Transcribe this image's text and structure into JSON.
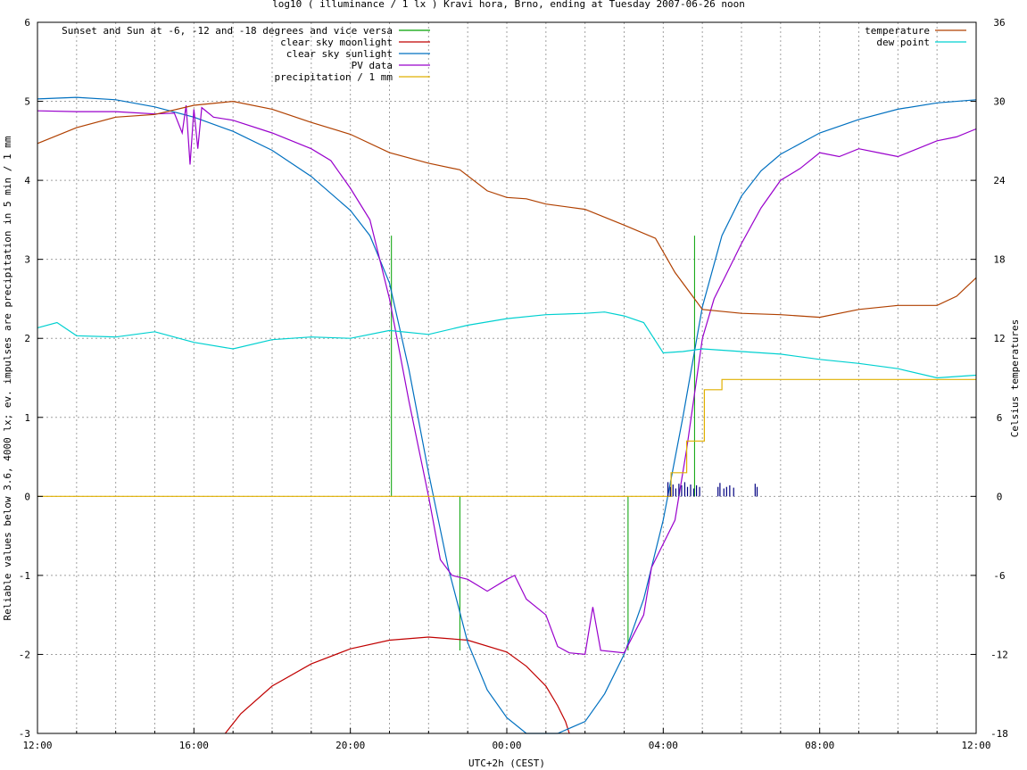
{
  "chart_data": {
    "type": "line",
    "title": "log10 ( illuminance / 1 lx ) Kravi hora, Brno, ending at Tuesday 2007-06-26 noon",
    "xlabel": "UTC+2h (CEST)",
    "ylabel": "Reliable values below 3.6, 4000 lx; ev. impulses are precipitation in 5 min / 1 mm",
    "y2label": "Celsius temperatures",
    "x_unit": "hours since 12:00 (start of window)",
    "xlim": [
      0,
      24
    ],
    "ylim": [
      -3,
      6
    ],
    "y2lim": [
      -18,
      36
    ],
    "xticks": [
      {
        "at": 0,
        "label": "12:00"
      },
      {
        "at": 4,
        "label": "16:00"
      },
      {
        "at": 8,
        "label": "20:00"
      },
      {
        "at": 12,
        "label": "00:00"
      },
      {
        "at": 16,
        "label": "04:00"
      },
      {
        "at": 20,
        "label": "08:00"
      },
      {
        "at": 24,
        "label": "12:00"
      }
    ],
    "yticks": [
      "-3",
      "-2",
      "-1",
      "0",
      "1",
      "2",
      "3",
      "4",
      "5",
      "6"
    ],
    "y2ticks": [
      "-18",
      "-12",
      "-6",
      "0",
      "6",
      "12",
      "18",
      "24",
      "30",
      "36"
    ],
    "grid": true,
    "legend_left": "top-left",
    "legend_right": "top-right",
    "series": [
      {
        "name": "Sunset and Sun at -6, -12 and -18 degrees and vice versa",
        "color": "#00a000",
        "axis": "y1",
        "kind": "impulses",
        "points": [
          [
            9.05,
            3.3
          ],
          [
            10.8,
            0
          ],
          [
            15.1,
            0
          ],
          [
            16.8,
            3.3
          ]
        ]
      },
      {
        "name": "clear sky moonlight",
        "color": "#c00000",
        "axis": "y1",
        "kind": "line",
        "points": [
          [
            4.8,
            -3.0
          ],
          [
            5.2,
            -2.75
          ],
          [
            6,
            -2.4
          ],
          [
            7,
            -2.12
          ],
          [
            8,
            -1.93
          ],
          [
            9,
            -1.82
          ],
          [
            10,
            -1.78
          ],
          [
            11,
            -1.82
          ],
          [
            12,
            -1.97
          ],
          [
            12.5,
            -2.15
          ],
          [
            13,
            -2.4
          ],
          [
            13.3,
            -2.65
          ],
          [
            13.5,
            -2.85
          ],
          [
            13.6,
            -3.0
          ]
        ]
      },
      {
        "name": "clear sky sunlight",
        "color": "#0070c0",
        "axis": "y1",
        "kind": "line",
        "points": [
          [
            0,
            5.03
          ],
          [
            1,
            5.05
          ],
          [
            2,
            5.02
          ],
          [
            3,
            4.93
          ],
          [
            4,
            4.8
          ],
          [
            5,
            4.62
          ],
          [
            6,
            4.38
          ],
          [
            7,
            4.05
          ],
          [
            8,
            3.62
          ],
          [
            8.5,
            3.3
          ],
          [
            9,
            2.7
          ],
          [
            9.5,
            1.6
          ],
          [
            10,
            0.3
          ],
          [
            10.5,
            -0.9
          ],
          [
            11,
            -1.85
          ],
          [
            11.5,
            -2.45
          ],
          [
            12,
            -2.8
          ],
          [
            12.5,
            -3.0
          ],
          [
            13.3,
            -3.0
          ],
          [
            14,
            -2.85
          ],
          [
            14.5,
            -2.5
          ],
          [
            15,
            -2.0
          ],
          [
            15.5,
            -1.3
          ],
          [
            16,
            -0.3
          ],
          [
            16.5,
            1.0
          ],
          [
            17,
            2.4
          ],
          [
            17.5,
            3.3
          ],
          [
            18,
            3.8
          ],
          [
            18.5,
            4.12
          ],
          [
            19,
            4.33
          ],
          [
            20,
            4.6
          ],
          [
            21,
            4.77
          ],
          [
            22,
            4.9
          ],
          [
            23,
            4.98
          ],
          [
            24,
            5.02
          ]
        ]
      },
      {
        "name": "PV data",
        "color": "#9900cc",
        "axis": "y1",
        "kind": "line",
        "points": [
          [
            0,
            4.88
          ],
          [
            1,
            4.87
          ],
          [
            2,
            4.87
          ],
          [
            3,
            4.84
          ],
          [
            3.5,
            4.85
          ],
          [
            3.7,
            4.6
          ],
          [
            3.8,
            4.95
          ],
          [
            3.9,
            4.2
          ],
          [
            4.0,
            4.9
          ],
          [
            4.1,
            4.4
          ],
          [
            4.2,
            4.92
          ],
          [
            4.5,
            4.8
          ],
          [
            5,
            4.76
          ],
          [
            6,
            4.6
          ],
          [
            7,
            4.4
          ],
          [
            7.5,
            4.25
          ],
          [
            8,
            3.9
          ],
          [
            8.5,
            3.5
          ],
          [
            9,
            2.5
          ],
          [
            9.5,
            1.2
          ],
          [
            10,
            0.0
          ],
          [
            10.3,
            -0.8
          ],
          [
            10.6,
            -1.0
          ],
          [
            11,
            -1.05
          ],
          [
            11.5,
            -1.2
          ],
          [
            12,
            -1.05
          ],
          [
            12.2,
            -1.0
          ],
          [
            12.5,
            -1.3
          ],
          [
            13,
            -1.5
          ],
          [
            13.3,
            -1.9
          ],
          [
            13.6,
            -1.98
          ],
          [
            14,
            -2.0
          ],
          [
            14.2,
            -1.4
          ],
          [
            14.4,
            -1.95
          ],
          [
            15,
            -1.98
          ],
          [
            15.5,
            -1.5
          ],
          [
            15.7,
            -0.9
          ],
          [
            16,
            -0.6
          ],
          [
            16.3,
            -0.3
          ],
          [
            16.6,
            0.6
          ],
          [
            17,
            2.0
          ],
          [
            17.3,
            2.5
          ],
          [
            17.6,
            2.8
          ],
          [
            18,
            3.2
          ],
          [
            18.5,
            3.65
          ],
          [
            19,
            4.0
          ],
          [
            19.5,
            4.15
          ],
          [
            20,
            4.35
          ],
          [
            20.5,
            4.3
          ],
          [
            21,
            4.4
          ],
          [
            21.5,
            4.35
          ],
          [
            22,
            4.3
          ],
          [
            22.5,
            4.4
          ],
          [
            23,
            4.5
          ],
          [
            23.5,
            4.55
          ],
          [
            24,
            4.65
          ]
        ]
      },
      {
        "name": "precipitation / 1 mm",
        "color": "#e0b000",
        "axis": "y1",
        "kind": "steps",
        "points": [
          [
            0,
            0
          ],
          [
            16,
            0
          ],
          [
            16.2,
            0.3
          ],
          [
            16.6,
            0.7
          ],
          [
            17.05,
            1.35
          ],
          [
            17.5,
            1.48
          ],
          [
            24,
            1.48
          ]
        ]
      },
      {
        "name": "temperature",
        "color": "#b04000",
        "axis": "y2",
        "kind": "line",
        "points": [
          [
            0,
            26.8
          ],
          [
            1,
            28.0
          ],
          [
            2,
            28.8
          ],
          [
            3,
            29.0
          ],
          [
            4,
            29.7
          ],
          [
            5,
            30.0
          ],
          [
            6,
            29.4
          ],
          [
            7,
            28.4
          ],
          [
            8,
            27.5
          ],
          [
            9,
            26.1
          ],
          [
            10,
            25.3
          ],
          [
            10.8,
            24.8
          ],
          [
            11.5,
            23.2
          ],
          [
            12,
            22.7
          ],
          [
            12.5,
            22.6
          ],
          [
            13,
            22.2
          ],
          [
            14,
            21.8
          ],
          [
            15,
            20.6
          ],
          [
            15.8,
            19.6
          ],
          [
            16.3,
            17.0
          ],
          [
            17,
            14.2
          ],
          [
            18,
            13.9
          ],
          [
            19,
            13.8
          ],
          [
            20,
            13.6
          ],
          [
            21,
            14.2
          ],
          [
            22,
            14.5
          ],
          [
            23,
            14.5
          ],
          [
            23.5,
            15.2
          ],
          [
            24,
            16.6
          ]
        ]
      },
      {
        "name": "dew point",
        "color": "#00d0d0",
        "axis": "y2",
        "kind": "line",
        "points": [
          [
            0,
            12.8
          ],
          [
            0.5,
            13.2
          ],
          [
            1,
            12.2
          ],
          [
            2,
            12.1
          ],
          [
            3,
            12.5
          ],
          [
            4,
            11.7
          ],
          [
            5,
            11.2
          ],
          [
            6,
            11.9
          ],
          [
            7,
            12.1
          ],
          [
            8,
            12.0
          ],
          [
            9,
            12.6
          ],
          [
            10,
            12.3
          ],
          [
            11,
            13.0
          ],
          [
            12,
            13.5
          ],
          [
            13,
            13.8
          ],
          [
            14,
            13.9
          ],
          [
            14.5,
            14.0
          ],
          [
            15,
            13.7
          ],
          [
            15.5,
            13.2
          ],
          [
            16,
            10.9
          ],
          [
            16.5,
            11.0
          ],
          [
            17,
            11.2
          ],
          [
            18,
            11.0
          ],
          [
            19,
            10.8
          ],
          [
            20,
            10.4
          ],
          [
            21,
            10.1
          ],
          [
            22,
            9.7
          ],
          [
            23,
            9.0
          ],
          [
            24,
            9.2
          ]
        ]
      }
    ],
    "rain_impulses": {
      "color": "#000080",
      "x": [
        16.12,
        16.18,
        16.25,
        16.32,
        16.4,
        16.47,
        16.55,
        16.62,
        16.7,
        16.78,
        16.85,
        16.93,
        17.4,
        17.45,
        17.55,
        17.62,
        17.7,
        17.8,
        18.35,
        18.4
      ],
      "h": [
        0.18,
        0.12,
        0.15,
        0.1,
        0.16,
        0.14,
        0.18,
        0.12,
        0.15,
        0.1,
        0.14,
        0.12,
        0.12,
        0.17,
        0.1,
        0.12,
        0.14,
        0.11,
        0.16,
        0.12
      ]
    }
  }
}
